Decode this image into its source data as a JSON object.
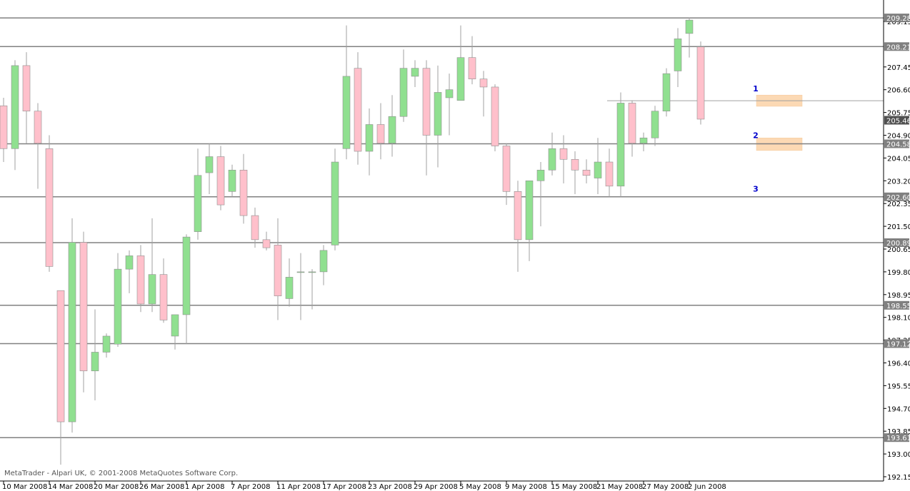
{
  "chart_data": {
    "type": "candlestick",
    "title": "",
    "y_axis": {
      "range": [
        192.15,
        209.28
      ],
      "ticks": [
        "209.15",
        "207.45",
        "206.60",
        "205.75",
        "204.90",
        "204.05",
        "203.20",
        "202.35",
        "201.50",
        "200.65",
        "199.80",
        "198.95",
        "198.10",
        "197.25",
        "196.40",
        "195.55",
        "194.70",
        "193.85",
        "193.00",
        "192.15"
      ],
      "tick_values": [
        209.15,
        207.45,
        206.6,
        205.75,
        204.9,
        204.05,
        203.2,
        202.35,
        201.5,
        200.65,
        199.8,
        198.95,
        198.1,
        197.25,
        196.4,
        195.55,
        194.7,
        193.85,
        193.0,
        192.15
      ]
    },
    "x_axis": {
      "labels": [
        "10 Mar 2008",
        "14 Mar 2008",
        "20 Mar 2008",
        "26 Mar 2008",
        "1 Apr 2008",
        "7 Apr 2008",
        "11 Apr 2008",
        "17 Apr 2008",
        "23 Apr 2008",
        "29 Apr 2008",
        "5 May 2008",
        "9 May 2008",
        "15 May 2008",
        "21 May 2008",
        "27 May 2008",
        "2 Jun 2008"
      ],
      "label_candle_index": [
        0,
        4,
        8,
        12,
        16,
        20,
        24,
        28,
        32,
        36,
        40,
        44,
        48,
        52,
        56,
        60
      ]
    },
    "candles": [
      {
        "o": 206.0,
        "h": 206.3,
        "l": 203.9,
        "c": 204.4
      },
      {
        "o": 204.4,
        "h": 207.7,
        "l": 203.6,
        "c": 207.5
      },
      {
        "o": 207.5,
        "h": 208.0,
        "l": 204.6,
        "c": 205.8
      },
      {
        "o": 205.8,
        "h": 206.1,
        "l": 202.9,
        "c": 204.6
      },
      {
        "o": 204.4,
        "h": 204.9,
        "l": 199.8,
        "c": 200.0
      },
      {
        "o": 199.1,
        "h": 199.1,
        "l": 192.6,
        "c": 194.2
      },
      {
        "o": 194.2,
        "h": 201.8,
        "l": 193.8,
        "c": 200.9
      },
      {
        "o": 200.9,
        "h": 201.3,
        "l": 195.3,
        "c": 196.1
      },
      {
        "o": 196.1,
        "h": 198.4,
        "l": 195.0,
        "c": 196.8
      },
      {
        "o": 196.8,
        "h": 197.5,
        "l": 196.6,
        "c": 197.4
      },
      {
        "o": 197.1,
        "h": 200.5,
        "l": 197.0,
        "c": 199.9
      },
      {
        "o": 199.9,
        "h": 200.6,
        "l": 199.0,
        "c": 200.4
      },
      {
        "o": 200.4,
        "h": 200.8,
        "l": 198.3,
        "c": 198.6
      },
      {
        "o": 198.6,
        "h": 201.8,
        "l": 198.3,
        "c": 199.7
      },
      {
        "o": 199.7,
        "h": 200.3,
        "l": 197.9,
        "c": 198.0
      },
      {
        "o": 197.4,
        "h": 198.2,
        "l": 196.9,
        "c": 198.2
      },
      {
        "o": 198.2,
        "h": 201.2,
        "l": 197.1,
        "c": 201.1
      },
      {
        "o": 201.3,
        "h": 204.4,
        "l": 201.0,
        "c": 203.4
      },
      {
        "o": 203.5,
        "h": 204.6,
        "l": 202.7,
        "c": 204.1
      },
      {
        "o": 204.1,
        "h": 204.5,
        "l": 202.1,
        "c": 202.3
      },
      {
        "o": 202.8,
        "h": 203.8,
        "l": 202.6,
        "c": 203.6
      },
      {
        "o": 203.6,
        "h": 204.2,
        "l": 201.6,
        "c": 201.9
      },
      {
        "o": 201.9,
        "h": 202.2,
        "l": 200.7,
        "c": 201.0
      },
      {
        "o": 201.0,
        "h": 201.3,
        "l": 200.6,
        "c": 200.7
      },
      {
        "o": 200.8,
        "h": 201.8,
        "l": 198.0,
        "c": 198.9
      },
      {
        "o": 198.8,
        "h": 200.3,
        "l": 198.5,
        "c": 199.6
      },
      {
        "o": 199.8,
        "h": 200.5,
        "l": 198.0,
        "c": 199.8
      },
      {
        "o": 199.8,
        "h": 199.9,
        "l": 198.4,
        "c": 199.8
      },
      {
        "o": 199.8,
        "h": 200.8,
        "l": 199.3,
        "c": 200.6
      },
      {
        "o": 200.8,
        "h": 204.4,
        "l": 200.6,
        "c": 203.9
      },
      {
        "o": 204.4,
        "h": 209.0,
        "l": 204.0,
        "c": 207.1
      },
      {
        "o": 207.4,
        "h": 208.0,
        "l": 203.8,
        "c": 204.3
      },
      {
        "o": 204.3,
        "h": 205.9,
        "l": 203.4,
        "c": 205.3
      },
      {
        "o": 205.3,
        "h": 206.1,
        "l": 204.0,
        "c": 204.6
      },
      {
        "o": 204.6,
        "h": 206.4,
        "l": 204.1,
        "c": 205.6
      },
      {
        "o": 205.6,
        "h": 208.1,
        "l": 205.4,
        "c": 207.4
      },
      {
        "o": 207.1,
        "h": 207.7,
        "l": 206.7,
        "c": 207.4
      },
      {
        "o": 207.4,
        "h": 207.7,
        "l": 203.4,
        "c": 204.9
      },
      {
        "o": 204.9,
        "h": 207.5,
        "l": 203.7,
        "c": 206.5
      },
      {
        "o": 206.3,
        "h": 207.2,
        "l": 204.9,
        "c": 206.6
      },
      {
        "o": 206.2,
        "h": 209.0,
        "l": 206.2,
        "c": 207.8
      },
      {
        "o": 207.8,
        "h": 208.6,
        "l": 206.8,
        "c": 207.0
      },
      {
        "o": 207.0,
        "h": 207.3,
        "l": 205.6,
        "c": 206.7
      },
      {
        "o": 206.7,
        "h": 206.8,
        "l": 204.3,
        "c": 204.5
      },
      {
        "o": 204.5,
        "h": 204.6,
        "l": 202.3,
        "c": 202.8
      },
      {
        "o": 202.8,
        "h": 203.2,
        "l": 199.8,
        "c": 201.0
      },
      {
        "o": 201.0,
        "h": 203.2,
        "l": 200.2,
        "c": 203.2
      },
      {
        "o": 203.2,
        "h": 203.9,
        "l": 201.5,
        "c": 203.6
      },
      {
        "o": 203.6,
        "h": 205.0,
        "l": 203.4,
        "c": 204.4
      },
      {
        "o": 204.4,
        "h": 204.9,
        "l": 203.1,
        "c": 204.0
      },
      {
        "o": 204.0,
        "h": 204.3,
        "l": 202.7,
        "c": 203.6
      },
      {
        "o": 203.6,
        "h": 204.0,
        "l": 203.1,
        "c": 203.4
      },
      {
        "o": 203.3,
        "h": 204.8,
        "l": 202.7,
        "c": 203.9
      },
      {
        "o": 203.9,
        "h": 204.4,
        "l": 202.6,
        "c": 203.0
      },
      {
        "o": 203.0,
        "h": 206.5,
        "l": 202.6,
        "c": 206.1
      },
      {
        "o": 206.1,
        "h": 206.2,
        "l": 204.1,
        "c": 204.6
      },
      {
        "o": 204.6,
        "h": 205.0,
        "l": 204.3,
        "c": 204.8
      },
      {
        "o": 204.8,
        "h": 206.0,
        "l": 204.5,
        "c": 205.8
      },
      {
        "o": 205.8,
        "h": 207.4,
        "l": 205.6,
        "c": 207.2
      },
      {
        "o": 207.3,
        "h": 208.9,
        "l": 206.7,
        "c": 208.5
      },
      {
        "o": 208.7,
        "h": 209.3,
        "l": 207.8,
        "c": 209.2
      },
      {
        "o": 208.2,
        "h": 208.4,
        "l": 205.3,
        "c": 205.5
      }
    ],
    "horizontal_lines": [
      {
        "value": 209.28,
        "label": "209.28"
      },
      {
        "value": 208.21,
        "label": "208.21"
      },
      {
        "value": 204.58,
        "label": "204.58"
      },
      {
        "value": 202.6,
        "label": "202.60"
      },
      {
        "value": 200.89,
        "label": "200.89"
      },
      {
        "value": 198.55,
        "label": "198.55"
      },
      {
        "value": 197.12,
        "label": "197.12"
      },
      {
        "value": 193.61,
        "label": "193.61"
      }
    ],
    "current_price": {
      "value": 205.46,
      "label": "205.46"
    },
    "bid_line": {
      "value": 206.19
    },
    "zones": [
      {
        "label": "1",
        "label_value": 206.65,
        "top": 206.4,
        "bottom": 205.98
      },
      {
        "label": "2",
        "label_value": 204.9,
        "top": 204.8,
        "bottom": 204.33
      },
      {
        "label": "3",
        "label_value": 202.9
      }
    ],
    "colors": {
      "bull_fill": "#90e090",
      "bear_fill": "#ffc0cb",
      "wick": "#a0a0a0",
      "level_line": "#808080",
      "zone_fill": "#fcd9b4",
      "zone_label": "#0000cc",
      "price_label_bg": "#808080",
      "price_label_text": "#ffffff",
      "axis": "#000000"
    }
  },
  "footer": {
    "copyright": "MetaTrader - Alpari UK, © 2001-2008 MetaQuotes Software Corp."
  }
}
